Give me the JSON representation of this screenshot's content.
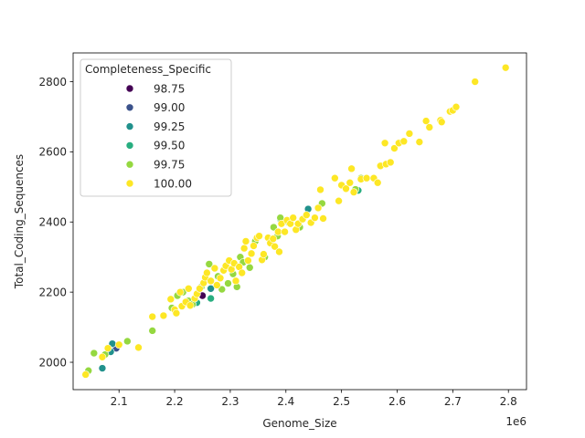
{
  "chart_data": {
    "type": "scatter",
    "xlabel": "Genome_Size",
    "ylabel": "Total_Coding_Sequences",
    "x_offset_label": "1e6",
    "xlim": [
      2.0175,
      2.8325
    ],
    "ylim": [
      1922,
      2882
    ],
    "x_ticks": [
      "2.1",
      "2.2",
      "2.3",
      "2.4",
      "2.5",
      "2.6",
      "2.7",
      "2.8"
    ],
    "y_ticks": [
      "2000",
      "2200",
      "2400",
      "2600",
      "2800"
    ],
    "legend": {
      "title": "Completeness_Specific",
      "placement": "upper-left",
      "entries": [
        {
          "label": "98.75",
          "color": "#440154"
        },
        {
          "label": "99.00",
          "color": "#3b528b"
        },
        {
          "label": "99.25",
          "color": "#21918c"
        },
        {
          "label": "99.50",
          "color": "#28ae80"
        },
        {
          "label": "99.75",
          "color": "#95d840"
        },
        {
          "label": "100.00",
          "color": "#fde725"
        }
      ]
    },
    "x_values_unit": "genome size in units of 1e6",
    "series": [
      {
        "name": "98.75",
        "color": "#440154",
        "points": [
          [
            2.25,
            2190
          ]
        ]
      },
      {
        "name": "99.00",
        "color": "#3b528b",
        "points": [
          [
            2.095,
            2040
          ]
        ]
      },
      {
        "name": "99.25",
        "color": "#21918c",
        "points": [
          [
            2.07,
            1983
          ],
          [
            2.085,
            2030
          ],
          [
            2.088,
            2053
          ],
          [
            2.265,
            2210
          ],
          [
            2.44,
            2437
          ]
        ]
      },
      {
        "name": "99.50",
        "color": "#28ae80",
        "points": [
          [
            2.24,
            2170
          ],
          [
            2.265,
            2182
          ],
          [
            2.39,
            2408
          ],
          [
            2.53,
            2490
          ]
        ]
      },
      {
        "name": "99.75",
        "color": "#95d840",
        "points": [
          [
            2.045,
            1976
          ],
          [
            2.055,
            2026
          ],
          [
            2.075,
            2022
          ],
          [
            2.115,
            2060
          ],
          [
            2.16,
            2090
          ],
          [
            2.195,
            2155
          ],
          [
            2.205,
            2190
          ],
          [
            2.215,
            2200
          ],
          [
            2.225,
            2175
          ],
          [
            2.232,
            2165
          ],
          [
            2.248,
            2215
          ],
          [
            2.262,
            2280
          ],
          [
            2.278,
            2245
          ],
          [
            2.285,
            2208
          ],
          [
            2.296,
            2225
          ],
          [
            2.305,
            2252
          ],
          [
            2.312,
            2215
          ],
          [
            2.318,
            2300
          ],
          [
            2.323,
            2285
          ],
          [
            2.335,
            2270
          ],
          [
            2.345,
            2345
          ],
          [
            2.362,
            2300
          ],
          [
            2.378,
            2385
          ],
          [
            2.385,
            2360
          ],
          [
            2.39,
            2412
          ],
          [
            2.405,
            2398
          ],
          [
            2.425,
            2385
          ],
          [
            2.465,
            2453
          ],
          [
            2.525,
            2493
          ],
          [
            2.535,
            2525
          ]
        ]
      },
      {
        "name": "100.00",
        "color": "#fde725",
        "points": [
          [
            2.04,
            1965
          ],
          [
            2.07,
            2015
          ],
          [
            2.08,
            2040
          ],
          [
            2.1,
            2050
          ],
          [
            2.135,
            2042
          ],
          [
            2.16,
            2130
          ],
          [
            2.18,
            2133
          ],
          [
            2.193,
            2180
          ],
          [
            2.2,
            2150
          ],
          [
            2.203,
            2140
          ],
          [
            2.21,
            2200
          ],
          [
            2.213,
            2160
          ],
          [
            2.22,
            2172
          ],
          [
            2.225,
            2210
          ],
          [
            2.228,
            2162
          ],
          [
            2.236,
            2182
          ],
          [
            2.24,
            2195
          ],
          [
            2.245,
            2210
          ],
          [
            2.252,
            2226
          ],
          [
            2.255,
            2242
          ],
          [
            2.258,
            2255
          ],
          [
            2.265,
            2232
          ],
          [
            2.272,
            2268
          ],
          [
            2.276,
            2220
          ],
          [
            2.282,
            2240
          ],
          [
            2.288,
            2262
          ],
          [
            2.292,
            2275
          ],
          [
            2.298,
            2290
          ],
          [
            2.302,
            2265
          ],
          [
            2.307,
            2282
          ],
          [
            2.31,
            2232
          ],
          [
            2.316,
            2272
          ],
          [
            2.321,
            2255
          ],
          [
            2.325,
            2325
          ],
          [
            2.328,
            2345
          ],
          [
            2.332,
            2290
          ],
          [
            2.338,
            2310
          ],
          [
            2.342,
            2332
          ],
          [
            2.348,
            2355
          ],
          [
            2.352,
            2360
          ],
          [
            2.357,
            2292
          ],
          [
            2.36,
            2308
          ],
          [
            2.368,
            2355
          ],
          [
            2.372,
            2340
          ],
          [
            2.377,
            2352
          ],
          [
            2.38,
            2330
          ],
          [
            2.386,
            2372
          ],
          [
            2.388,
            2315
          ],
          [
            2.392,
            2395
          ],
          [
            2.398,
            2372
          ],
          [
            2.402,
            2405
          ],
          [
            2.408,
            2395
          ],
          [
            2.413,
            2412
          ],
          [
            2.418,
            2378
          ],
          [
            2.422,
            2395
          ],
          [
            2.43,
            2408
          ],
          [
            2.437,
            2420
          ],
          [
            2.445,
            2398
          ],
          [
            2.452,
            2412
          ],
          [
            2.458,
            2440
          ],
          [
            2.462,
            2492
          ],
          [
            2.467,
            2410
          ],
          [
            2.488,
            2525
          ],
          [
            2.495,
            2460
          ],
          [
            2.5,
            2505
          ],
          [
            2.508,
            2495
          ],
          [
            2.515,
            2512
          ],
          [
            2.518,
            2552
          ],
          [
            2.522,
            2485
          ],
          [
            2.535,
            2522
          ],
          [
            2.545,
            2525
          ],
          [
            2.558,
            2525
          ],
          [
            2.565,
            2512
          ],
          [
            2.57,
            2560
          ],
          [
            2.578,
            2625
          ],
          [
            2.58,
            2565
          ],
          [
            2.588,
            2570
          ],
          [
            2.595,
            2610
          ],
          [
            2.603,
            2625
          ],
          [
            2.612,
            2630
          ],
          [
            2.622,
            2652
          ],
          [
            2.64,
            2628
          ],
          [
            2.652,
            2688
          ],
          [
            2.658,
            2670
          ],
          [
            2.678,
            2690
          ],
          [
            2.68,
            2685
          ],
          [
            2.695,
            2715
          ],
          [
            2.7,
            2718
          ],
          [
            2.706,
            2728
          ],
          [
            2.74,
            2800
          ],
          [
            2.795,
            2840
          ]
        ]
      }
    ]
  }
}
